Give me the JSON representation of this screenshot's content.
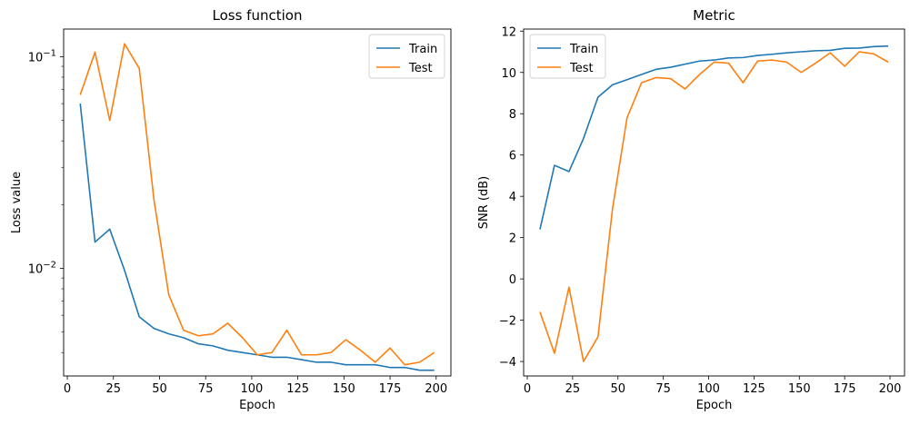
{
  "chart_data": [
    {
      "type": "line",
      "title": "Loss function",
      "xlabel": "Epoch",
      "ylabel": "Loss value",
      "yscale": "log",
      "xlim": [
        -2,
        208
      ],
      "ylim": [
        0.0031,
        0.135
      ],
      "x_ticks": [
        0,
        25,
        50,
        75,
        100,
        125,
        150,
        175,
        200
      ],
      "y_ticks": [
        {
          "value": 0.1,
          "base": "10",
          "exp": "−1"
        },
        {
          "value": 0.01,
          "base": "10",
          "exp": "−2"
        }
      ],
      "legend": "top-right",
      "grid": false,
      "x": [
        7,
        15,
        23,
        31,
        39,
        47,
        55,
        63,
        71,
        79,
        87,
        95,
        103,
        111,
        119,
        127,
        135,
        143,
        151,
        159,
        167,
        175,
        183,
        191,
        199
      ],
      "series": [
        {
          "name": "Train",
          "color": "#1f77b4",
          "values": [
            0.06,
            0.0133,
            0.0153,
            0.0098,
            0.0059,
            0.0052,
            0.0049,
            0.0047,
            0.0044,
            0.0043,
            0.0041,
            0.004,
            0.0039,
            0.0038,
            0.0038,
            0.0037,
            0.0036,
            0.0036,
            0.0035,
            0.0035,
            0.0035,
            0.0034,
            0.0034,
            0.0033,
            0.0033
          ]
        },
        {
          "name": "Test",
          "color": "#ff7f0e",
          "values": [
            0.066,
            0.105,
            0.05,
            0.115,
            0.088,
            0.021,
            0.0075,
            0.0051,
            0.0048,
            0.0049,
            0.0055,
            0.0047,
            0.0039,
            0.004,
            0.0051,
            0.0039,
            0.0039,
            0.004,
            0.0046,
            0.0041,
            0.0036,
            0.0042,
            0.0035,
            0.0036,
            0.004
          ]
        }
      ]
    },
    {
      "type": "line",
      "title": "Metric",
      "xlabel": "Epoch",
      "ylabel": "SNR (dB)",
      "xlim": [
        -2,
        208
      ],
      "ylim": [
        -4.7,
        12.1
      ],
      "x_ticks": [
        0,
        25,
        50,
        75,
        100,
        125,
        150,
        175,
        200
      ],
      "y_ticks": [
        -4,
        -2,
        0,
        2,
        4,
        6,
        8,
        10,
        12
      ],
      "legend": "top-left",
      "grid": false,
      "x": [
        7,
        15,
        23,
        31,
        39,
        47,
        55,
        63,
        71,
        79,
        87,
        95,
        103,
        111,
        119,
        127,
        135,
        143,
        151,
        159,
        167,
        175,
        183,
        191,
        199
      ],
      "series": [
        {
          "name": "Train",
          "color": "#1f77b4",
          "values": [
            2.4,
            5.5,
            5.2,
            6.8,
            8.8,
            9.4,
            9.65,
            9.9,
            10.15,
            10.25,
            10.4,
            10.55,
            10.6,
            10.7,
            10.72,
            10.82,
            10.88,
            10.95,
            11.0,
            11.05,
            11.07,
            11.17,
            11.18,
            11.25,
            11.28
          ]
        },
        {
          "name": "Test",
          "color": "#ff7f0e",
          "values": [
            -1.6,
            -3.6,
            -0.4,
            -4.0,
            -2.8,
            3.4,
            7.8,
            9.5,
            9.75,
            9.7,
            9.2,
            9.9,
            10.5,
            10.45,
            9.5,
            10.55,
            10.6,
            10.5,
            10.0,
            10.45,
            10.95,
            10.3,
            11.0,
            10.9,
            10.5
          ]
        }
      ]
    }
  ]
}
